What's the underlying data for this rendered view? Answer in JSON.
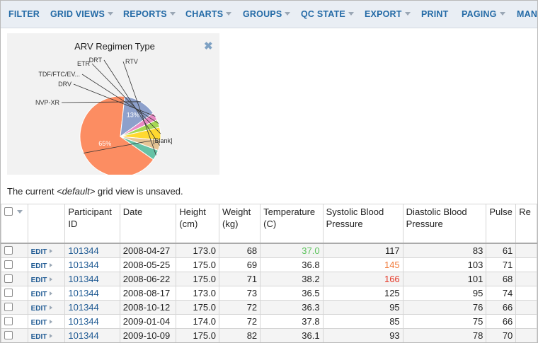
{
  "toolbar": {
    "items": [
      {
        "label": "FILTER",
        "dropdown": false
      },
      {
        "label": "GRID VIEWS",
        "dropdown": true
      },
      {
        "label": "REPORTS",
        "dropdown": true
      },
      {
        "label": "CHARTS",
        "dropdown": true
      },
      {
        "label": "GROUPS",
        "dropdown": true
      },
      {
        "label": "QC STATE",
        "dropdown": true
      },
      {
        "label": "EXPORT",
        "dropdown": true
      },
      {
        "label": "PRINT",
        "dropdown": false
      },
      {
        "label": "PAGING",
        "dropdown": true
      },
      {
        "label": "MANA",
        "dropdown": false
      }
    ]
  },
  "chart_data": {
    "type": "pie",
    "title": "ARV Regimen Type",
    "slices": [
      {
        "label": "[Blank]",
        "value": 65,
        "value_label": "65%",
        "color": "#fc8d62"
      },
      {
        "label": "NVP-XR",
        "value": 13,
        "value_label": "13%",
        "color": "#8da0cb"
      },
      {
        "label": "DRV",
        "value": 3,
        "value_label": "",
        "color": "#e78ac3"
      },
      {
        "label": "TDF/FTC/EV...",
        "value": 3,
        "value_label": "",
        "color": "#a6d854"
      },
      {
        "label": "ETR",
        "value": 5,
        "value_label": "",
        "color": "#ffd92f"
      },
      {
        "label": "DRT",
        "value": 4,
        "value_label": "",
        "color": "#e5c494"
      },
      {
        "label": "RTV",
        "value": 4,
        "value_label": "",
        "color": "#66c2a5"
      }
    ]
  },
  "notice": {
    "prefix": "The current ",
    "view_name": "<default>",
    "suffix": " grid view is unsaved."
  },
  "grid": {
    "columns": [
      "Participant ID",
      "Date",
      "Height (cm)",
      "Weight (kg)",
      "Temperature (C)",
      "Systolic Blood Pressure",
      "Diastolic Blood Pressure",
      "Pulse",
      "Re"
    ],
    "edit_label": "EDIT",
    "rows": [
      {
        "participant": "101344",
        "date": "2008-04-27",
        "height": "173.0",
        "weight": "68",
        "temperature": "37.0",
        "temp_color": "#5ac25a",
        "systolic": "117",
        "sys_color": "#222222",
        "diastolic": "83",
        "pulse": "61"
      },
      {
        "participant": "101344",
        "date": "2008-05-25",
        "height": "175.0",
        "weight": "69",
        "temperature": "36.8",
        "temp_color": "#222222",
        "systolic": "145",
        "sys_color": "#f07a3a",
        "diastolic": "103",
        "pulse": "71"
      },
      {
        "participant": "101344",
        "date": "2008-06-22",
        "height": "175.0",
        "weight": "71",
        "temperature": "38.2",
        "temp_color": "#222222",
        "systolic": "166",
        "sys_color": "#e53a2a",
        "diastolic": "101",
        "pulse": "68"
      },
      {
        "participant": "101344",
        "date": "2008-08-17",
        "height": "173.0",
        "weight": "73",
        "temperature": "36.5",
        "temp_color": "#222222",
        "systolic": "125",
        "sys_color": "#222222",
        "diastolic": "95",
        "pulse": "74"
      },
      {
        "participant": "101344",
        "date": "2008-10-12",
        "height": "175.0",
        "weight": "72",
        "temperature": "36.3",
        "temp_color": "#222222",
        "systolic": "95",
        "sys_color": "#222222",
        "diastolic": "76",
        "pulse": "66"
      },
      {
        "participant": "101344",
        "date": "2009-01-04",
        "height": "174.0",
        "weight": "72",
        "temperature": "37.8",
        "temp_color": "#222222",
        "systolic": "85",
        "sys_color": "#222222",
        "diastolic": "75",
        "pulse": "66"
      },
      {
        "participant": "101344",
        "date": "2009-10-09",
        "height": "175.0",
        "weight": "82",
        "temperature": "36.1",
        "temp_color": "#222222",
        "systolic": "93",
        "sys_color": "#222222",
        "diastolic": "78",
        "pulse": "70"
      }
    ]
  }
}
